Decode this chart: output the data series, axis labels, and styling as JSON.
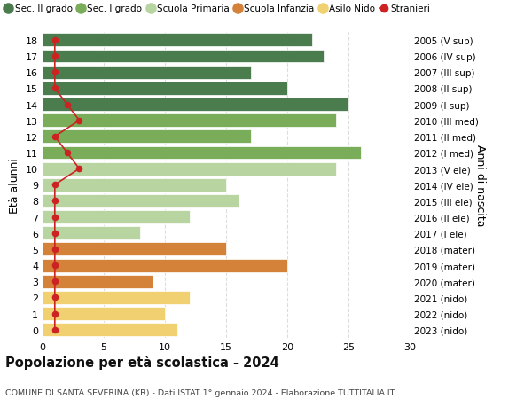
{
  "ages": [
    18,
    17,
    16,
    15,
    14,
    13,
    12,
    11,
    10,
    9,
    8,
    7,
    6,
    5,
    4,
    3,
    2,
    1,
    0
  ],
  "years": [
    "2005 (V sup)",
    "2006 (IV sup)",
    "2007 (III sup)",
    "2008 (II sup)",
    "2009 (I sup)",
    "2010 (III med)",
    "2011 (II med)",
    "2012 (I med)",
    "2013 (V ele)",
    "2014 (IV ele)",
    "2015 (III ele)",
    "2016 (II ele)",
    "2017 (I ele)",
    "2018 (mater)",
    "2019 (mater)",
    "2020 (mater)",
    "2021 (nido)",
    "2022 (nido)",
    "2023 (nido)"
  ],
  "bar_values": [
    22,
    23,
    17,
    20,
    25,
    24,
    17,
    26,
    24,
    15,
    16,
    12,
    8,
    15,
    20,
    9,
    12,
    10,
    11
  ],
  "bar_colors": [
    "#4a7c4e",
    "#4a7c4e",
    "#4a7c4e",
    "#4a7c4e",
    "#4a7c4e",
    "#7aad5a",
    "#7aad5a",
    "#7aad5a",
    "#b8d4a0",
    "#b8d4a0",
    "#b8d4a0",
    "#b8d4a0",
    "#b8d4a0",
    "#d4813a",
    "#d4813a",
    "#d4813a",
    "#f0d070",
    "#f0d070",
    "#f0d070"
  ],
  "stranieri_x": [
    1,
    1,
    1,
    1,
    2,
    3,
    1,
    2,
    3,
    1,
    1,
    1,
    1,
    1,
    1,
    1,
    1,
    1,
    1
  ],
  "title_main": "Popolazione per età scolastica - 2024",
  "title_sub": "COMUNE DI SANTA SEVERINA (KR) - Dati ISTAT 1° gennaio 2024 - Elaborazione TUTTITALIA.IT",
  "ylabel": "Età alunni",
  "ylabel2": "Anni di nascita",
  "legend_labels": [
    "Sec. II grado",
    "Sec. I grado",
    "Scuola Primaria",
    "Scuola Infanzia",
    "Asilo Nido",
    "Stranieri"
  ],
  "legend_colors": [
    "#4a7c4e",
    "#7aad5a",
    "#b8d4a0",
    "#d4813a",
    "#f0d070",
    "#cc2222"
  ],
  "xlim": [
    0,
    30
  ],
  "ylim": [
    -0.5,
    18.5
  ],
  "background_color": "#ffffff",
  "grid_color": "#dddddd"
}
